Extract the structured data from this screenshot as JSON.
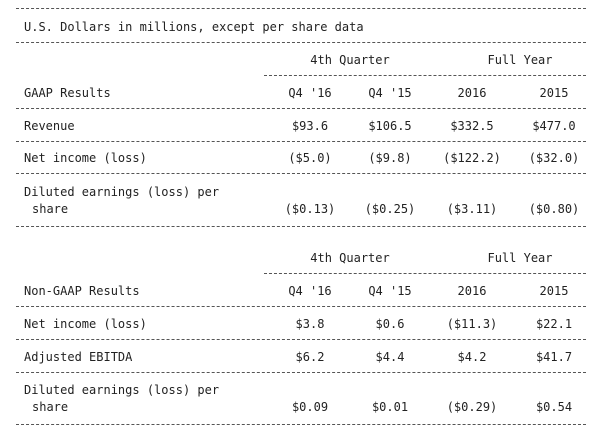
{
  "caption": "U.S. Dollars in millions, except per share data",
  "gaap": {
    "group_quarter": "4th Quarter",
    "group_year": "Full Year",
    "row_header": "GAAP Results",
    "columns": [
      "Q4 '16",
      "Q4 '15",
      "2016",
      "2015"
    ],
    "rows": [
      {
        "label": "Revenue",
        "values": [
          "$93.6",
          "$106.5",
          "$332.5",
          "$477.0"
        ]
      },
      {
        "label": "Net income (loss)",
        "values": [
          "($5.0)",
          "($9.8)",
          "($122.2)",
          "($32.0)"
        ]
      },
      {
        "label_line1": "Diluted earnings (loss) per",
        "label_line2": "share",
        "values": [
          "($0.13)",
          "($0.25)",
          "($3.11)",
          "($0.80)"
        ]
      }
    ]
  },
  "nongaap": {
    "group_quarter": "4th Quarter",
    "group_year": "Full Year",
    "row_header": "Non-GAAP Results",
    "columns": [
      "Q4 '16",
      "Q4 '15",
      "2016",
      "2015"
    ],
    "rows": [
      {
        "label": "Net income (loss)",
        "values": [
          "$3.8",
          "$0.6",
          "($11.3)",
          "$22.1"
        ]
      },
      {
        "label": "Adjusted EBITDA",
        "values": [
          "$6.2",
          "$4.4",
          "$4.2",
          "$41.7"
        ]
      },
      {
        "label_line1": "Diluted earnings (loss) per",
        "label_line2": "share",
        "values": [
          "$0.09",
          "$0.01",
          "($0.29)",
          "$0.54"
        ]
      }
    ]
  }
}
